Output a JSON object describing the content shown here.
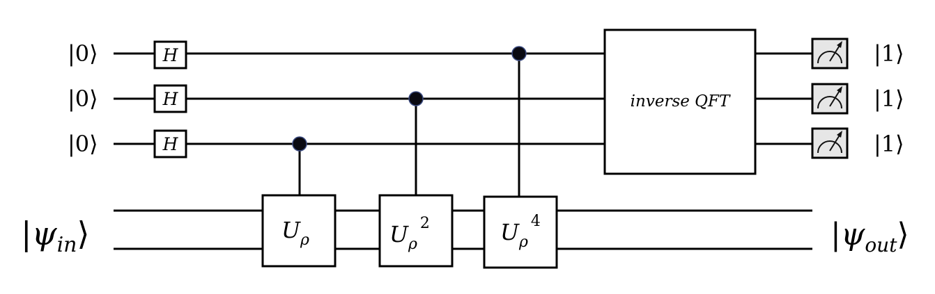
{
  "qubit_inputs": [
    {
      "label": "|0⟩",
      "gate": "H"
    },
    {
      "label": "|0⟩",
      "gate": "H"
    },
    {
      "label": "|0⟩",
      "gate": "H"
    }
  ],
  "register_input": {
    "psi": "|ψ",
    "subscript": "in",
    "close": "⟩"
  },
  "register_output": {
    "psi": "|ψ",
    "subscript": "out",
    "close": "⟩"
  },
  "controlled_gates": [
    {
      "base": "U",
      "sub": "ρ",
      "power": ""
    },
    {
      "base": "U",
      "sub": "ρ",
      "power": "2"
    },
    {
      "base": "U",
      "sub": "ρ",
      "power": "4"
    }
  ],
  "qft_label": "inverse QFT",
  "outputs": [
    {
      "label": "|1⟩"
    },
    {
      "label": "|1⟩"
    },
    {
      "label": "|1⟩"
    }
  ]
}
